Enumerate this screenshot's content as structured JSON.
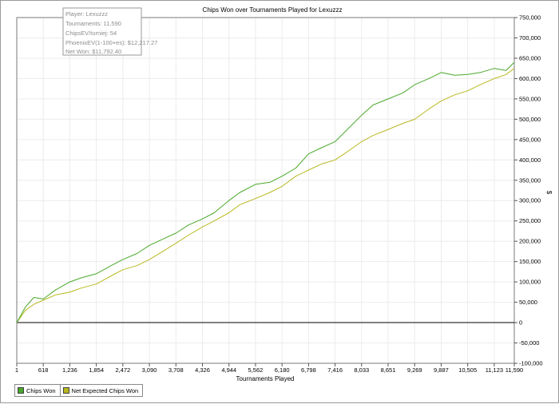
{
  "chart_data": {
    "type": "line",
    "title": "Chips Won over Tournaments Played for  Lexuzzz",
    "xlabel": "Tournaments Played",
    "ylabel": "$",
    "xlim": [
      1,
      11590
    ],
    "ylim": [
      -100000,
      750000
    ],
    "x_ticks": [
      "1",
      "618",
      "1,236",
      "1,854",
      "2,472",
      "3,090",
      "3,708",
      "4,326",
      "4,944",
      "5,562",
      "6,180",
      "6,798",
      "7,416",
      "8,033",
      "8,651",
      "9,269",
      "9,887",
      "10,505",
      "11,123",
      "11,590"
    ],
    "x_tick_values": [
      1,
      618,
      1236,
      1854,
      2472,
      3090,
      3708,
      4326,
      4944,
      5562,
      6180,
      6798,
      7416,
      8033,
      8651,
      9269,
      9887,
      10505,
      11123,
      11590
    ],
    "y_ticks": [
      "750,000",
      "700,000",
      "650,000",
      "600,000",
      "550,000",
      "500,000",
      "450,000",
      "400,000",
      "350,000",
      "300,000",
      "250,000",
      "200,000",
      "150,000",
      "100,000",
      "50,000",
      "0",
      "-50,000",
      "-100,000"
    ],
    "y_tick_values": [
      750000,
      700000,
      650000,
      600000,
      550000,
      500000,
      450000,
      400000,
      350000,
      300000,
      250000,
      200000,
      150000,
      100000,
      50000,
      0,
      -50000,
      -100000
    ],
    "grid": true,
    "legend_position": "bottom-left",
    "x": [
      1,
      200,
      400,
      618,
      900,
      1236,
      1500,
      1854,
      2200,
      2472,
      2800,
      3090,
      3400,
      3708,
      4000,
      4326,
      4600,
      4944,
      5200,
      5562,
      5900,
      6180,
      6500,
      6798,
      7100,
      7416,
      7700,
      8033,
      8300,
      8651,
      9000,
      9269,
      9600,
      9887,
      10200,
      10505,
      10800,
      11123,
      11400,
      11590
    ],
    "series": [
      {
        "name": "Chips Won",
        "color": "#4aa82a",
        "values": [
          0,
          38000,
          62000,
          58000,
          80000,
          100000,
          110000,
          120000,
          140000,
          155000,
          170000,
          190000,
          205000,
          220000,
          240000,
          255000,
          270000,
          300000,
          320000,
          340000,
          345000,
          360000,
          380000,
          415000,
          430000,
          445000,
          475000,
          510000,
          535000,
          550000,
          565000,
          585000,
          600000,
          615000,
          608000,
          610000,
          615000,
          625000,
          620000,
          640000
        ]
      },
      {
        "name": "Net Expected Chips Won",
        "color": "#b8b820",
        "values": [
          0,
          30000,
          45000,
          55000,
          68000,
          75000,
          85000,
          95000,
          115000,
          130000,
          140000,
          155000,
          175000,
          195000,
          215000,
          235000,
          250000,
          270000,
          290000,
          305000,
          320000,
          335000,
          360000,
          375000,
          390000,
          400000,
          420000,
          445000,
          460000,
          475000,
          490000,
          500000,
          525000,
          545000,
          560000,
          570000,
          585000,
          600000,
          610000,
          625000
        ]
      }
    ]
  },
  "info_box": {
    "player": "Player: Lexuzzz",
    "tournaments": "Tournaments: 11,590",
    "chipsev": "ChipsEV/turniej: 54",
    "phoenixev": "PhoenixEV(1-100+es): $12,217.27",
    "net_won": "Net Won: $11,792.40"
  }
}
